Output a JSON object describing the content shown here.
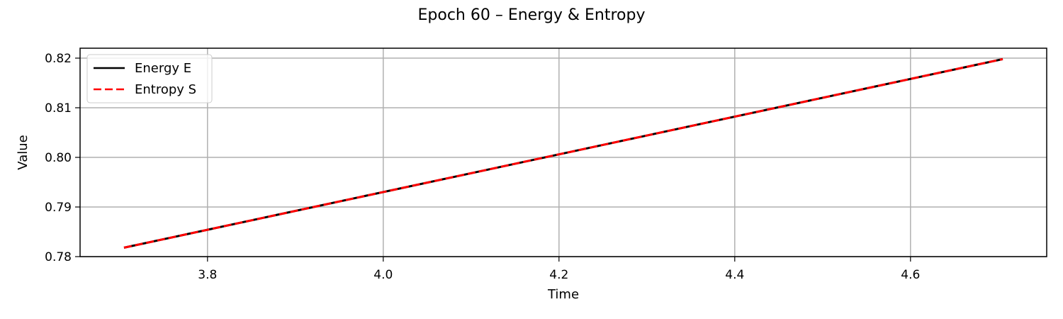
{
  "chart_data": {
    "type": "line",
    "title": "Epoch 60 – Energy & Entropy",
    "xlabel": "Time",
    "ylabel": "Value",
    "xlim": [
      3.655,
      4.755
    ],
    "ylim": [
      0.78,
      0.822
    ],
    "xticks": [
      3.8,
      4.0,
      4.2,
      4.4,
      4.6
    ],
    "xtick_labels": [
      "3.8",
      "4.0",
      "4.2",
      "4.4",
      "4.6"
    ],
    "yticks": [
      0.78,
      0.79,
      0.8,
      0.81,
      0.82
    ],
    "ytick_labels": [
      "0.78",
      "0.79",
      "0.80",
      "0.81",
      "0.82"
    ],
    "grid": true,
    "legend_position": "top-left",
    "series": [
      {
        "name": "Energy E",
        "color": "#000000",
        "style": "solid",
        "x": [
          3.705,
          4.705
        ],
        "y": [
          0.7818,
          0.8198
        ]
      },
      {
        "name": "Entropy S",
        "color": "#ff0000",
        "style": "dashed",
        "x": [
          3.705,
          4.705
        ],
        "y": [
          0.7818,
          0.8198
        ]
      }
    ]
  }
}
